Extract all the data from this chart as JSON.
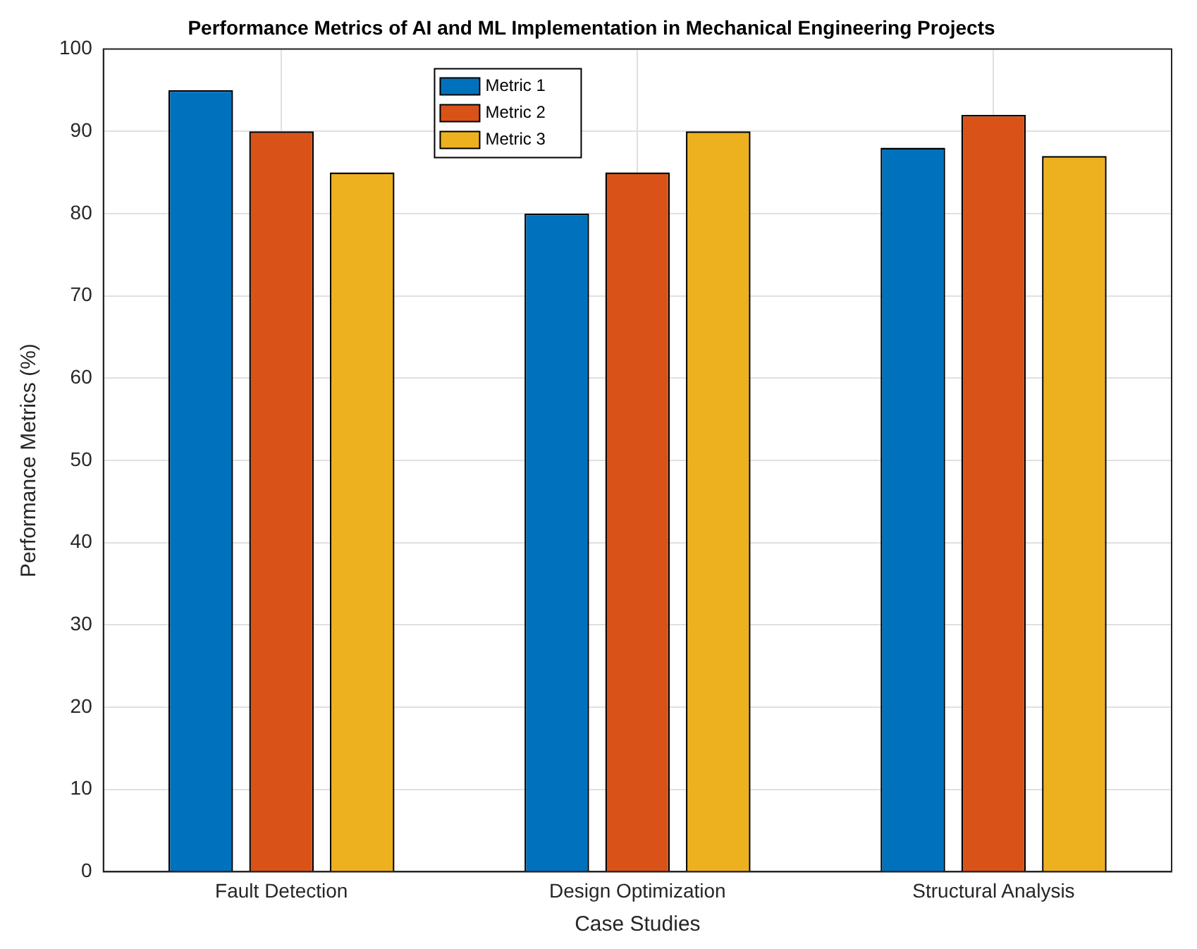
{
  "chart_data": {
    "type": "bar",
    "title": "Performance Metrics of AI and ML Implementation in Mechanical Engineering Projects",
    "xlabel": "Case Studies",
    "ylabel": "Performance Metrics (%)",
    "categories": [
      "Fault Detection",
      "Design Optimization",
      "Structural Analysis"
    ],
    "series": [
      {
        "name": "Metric 1",
        "color": "#0072bd",
        "values": [
          95,
          80,
          88
        ]
      },
      {
        "name": "Metric 2",
        "color": "#d95319",
        "values": [
          90,
          85,
          92
        ]
      },
      {
        "name": "Metric 3",
        "color": "#edb120",
        "values": [
          85,
          90,
          87
        ]
      }
    ],
    "ylim": [
      0,
      100
    ],
    "yticks": [
      0,
      10,
      20,
      30,
      40,
      50,
      60,
      70,
      80,
      90,
      100
    ],
    "grid": true,
    "legend": "top"
  }
}
